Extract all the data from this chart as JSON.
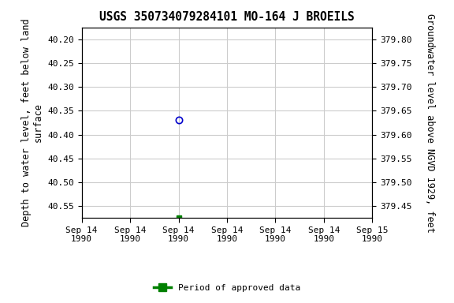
{
  "title": "USGS 350734079284101 MO-164 J BROEILS",
  "ylabel_left": "Depth to water level, feet below land\nsurface",
  "ylabel_right": "Groundwater level above NGVD 1929, feet",
  "ylim_left": [
    40.575,
    40.175
  ],
  "ylim_right": [
    379.425,
    379.825
  ],
  "yticks_left": [
    40.2,
    40.25,
    40.3,
    40.35,
    40.4,
    40.45,
    40.5,
    40.55
  ],
  "yticks_right": [
    379.45,
    379.5,
    379.55,
    379.6,
    379.65,
    379.7,
    379.75,
    379.8
  ],
  "point1_x_hours": 12,
  "point1_y": 40.37,
  "point1_color": "#0000cc",
  "point2_x_hours": 12,
  "point2_y": 40.575,
  "point2_color": "#008000",
  "xmin_hours": 0,
  "xmax_hours": 36,
  "xtick_hours": [
    0,
    6,
    12,
    18,
    24,
    30,
    36
  ],
  "xtick_labels": [
    "Sep 14\n1990",
    "Sep 14\n1990",
    "Sep 14\n1990",
    "Sep 14\n1990",
    "Sep 14\n1990",
    "Sep 14\n1990",
    "Sep 15\n1990"
  ],
  "legend_label": "Period of approved data",
  "legend_color": "#008000",
  "background_color": "#ffffff",
  "grid_color": "#cccccc",
  "title_fontsize": 10.5,
  "axis_label_fontsize": 8.5,
  "tick_fontsize": 8,
  "font_family": "monospace"
}
